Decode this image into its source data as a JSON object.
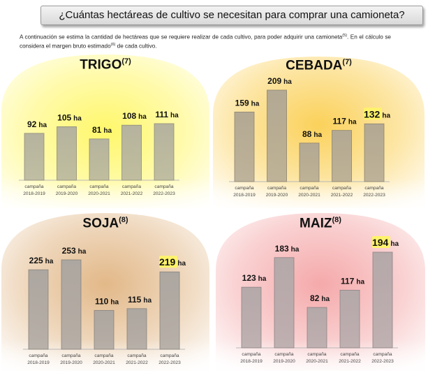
{
  "title": "¿Cuántas hectáreas de cultivo se necesitan para comprar una camioneta?",
  "intro": {
    "text_a": "A continuación se estima la cantidad de hectáreas que se requiere realizar de cada cultivo, para poder adquirir una camioneta",
    "ref_a": "(5)",
    "text_b": ". En el cálculo se considera el margen bruto estimado",
    "ref_b": "(6)",
    "text_c": " de cada cultivo."
  },
  "chart_data": [
    {
      "type": "bar",
      "title": "TRIGO",
      "title_ref": "(7)",
      "unit": "ha",
      "categories": [
        [
          "campaña",
          "2018-2019"
        ],
        [
          "campaña",
          "2019-2020"
        ],
        [
          "campaña",
          "2020-2021"
        ],
        [
          "campaña",
          "2021-2022"
        ],
        [
          "campaña",
          "2022-2023"
        ]
      ],
      "values": [
        92,
        105,
        81,
        108,
        111
      ],
      "highlight_last": false,
      "ylim": [
        0,
        111
      ],
      "colors": {
        "glow": "#fff76a",
        "bar": "#b5b39e",
        "bar_edge": "#8f8d7a"
      }
    },
    {
      "type": "bar",
      "title": "CEBADA",
      "title_ref": "(7)",
      "unit": "ha",
      "categories": [
        [
          "campaña",
          "2018-2019"
        ],
        [
          "campaña",
          "2019-2020"
        ],
        [
          "campaña",
          "2020-2021"
        ],
        [
          "campaña",
          "2021-2022"
        ],
        [
          "campaña",
          "2022-2023"
        ]
      ],
      "values": [
        159,
        209,
        88,
        117,
        132
      ],
      "highlight_last": true,
      "ylim": [
        0,
        209
      ],
      "colors": {
        "glow": "#fbd15a",
        "bar": "#b3a994",
        "bar_edge": "#8c846f"
      }
    },
    {
      "type": "bar",
      "title": "SOJA",
      "title_ref": "(8)",
      "unit": "ha",
      "categories": [
        [
          "campaña",
          "2018-2019"
        ],
        [
          "campaña",
          "2019-2020"
        ],
        [
          "campaña",
          "2020-2021"
        ],
        [
          "campaña",
          "2021-2022"
        ],
        [
          "campaña",
          "2022-2023"
        ]
      ],
      "values": [
        225,
        253,
        110,
        115,
        219
      ],
      "highlight_last": true,
      "ylim": [
        0,
        253
      ],
      "colors": {
        "glow": "#e2b888",
        "bar": "#ada7a1",
        "bar_edge": "#88827c"
      }
    },
    {
      "type": "bar",
      "title": "MAIZ",
      "title_ref": "(8)",
      "unit": "ha",
      "categories": [
        [
          "campaña",
          "2018-2019"
        ],
        [
          "campaña",
          "2019-2020"
        ],
        [
          "campaña",
          "2020-2021"
        ],
        [
          "campaña",
          "2021-2022"
        ],
        [
          "campaña",
          "2022-2023"
        ]
      ],
      "values": [
        123,
        183,
        82,
        117,
        194
      ],
      "highlight_last": true,
      "ylim": [
        0,
        194
      ],
      "colors": {
        "glow": "#f5a9aa",
        "bar": "#b5a9aa",
        "bar_edge": "#8f8384"
      }
    }
  ]
}
